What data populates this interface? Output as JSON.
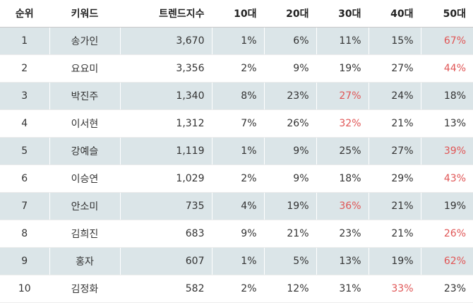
{
  "columns": [
    "순위",
    "키워드",
    "트렌드지수",
    "10대",
    "20대",
    "30대",
    "40대",
    "50대"
  ],
  "highlight_color": "#e05555",
  "rows": [
    {
      "rank": "1",
      "keyword": "송가인",
      "index": "3,670",
      "a10": "1%",
      "a20": "6%",
      "a30": "11%",
      "a40": "15%",
      "a50": "67%",
      "hl": "a50"
    },
    {
      "rank": "2",
      "keyword": "요요미",
      "index": "3,356",
      "a10": "2%",
      "a20": "9%",
      "a30": "19%",
      "a40": "27%",
      "a50": "44%",
      "hl": "a50"
    },
    {
      "rank": "3",
      "keyword": "박진주",
      "index": "1,340",
      "a10": "8%",
      "a20": "23%",
      "a30": "27%",
      "a40": "24%",
      "a50": "18%",
      "hl": "a30"
    },
    {
      "rank": "4",
      "keyword": "이서현",
      "index": "1,312",
      "a10": "7%",
      "a20": "26%",
      "a30": "32%",
      "a40": "21%",
      "a50": "13%",
      "hl": "a30"
    },
    {
      "rank": "5",
      "keyword": "강예슬",
      "index": "1,119",
      "a10": "1%",
      "a20": "9%",
      "a30": "25%",
      "a40": "27%",
      "a50": "39%",
      "hl": "a50"
    },
    {
      "rank": "6",
      "keyword": "이승연",
      "index": "1,029",
      "a10": "2%",
      "a20": "9%",
      "a30": "18%",
      "a40": "29%",
      "a50": "43%",
      "hl": "a50"
    },
    {
      "rank": "7",
      "keyword": "안소미",
      "index": "735",
      "a10": "4%",
      "a20": "19%",
      "a30": "36%",
      "a40": "21%",
      "a50": "19%",
      "hl": "a30"
    },
    {
      "rank": "8",
      "keyword": "김희진",
      "index": "683",
      "a10": "9%",
      "a20": "21%",
      "a30": "23%",
      "a40": "21%",
      "a50": "26%",
      "hl": "a50"
    },
    {
      "rank": "9",
      "keyword": "홍자",
      "index": "607",
      "a10": "1%",
      "a20": "5%",
      "a30": "13%",
      "a40": "19%",
      "a50": "62%",
      "hl": "a50"
    },
    {
      "rank": "10",
      "keyword": "김정화",
      "index": "582",
      "a10": "2%",
      "a20": "12%",
      "a30": "31%",
      "a40": "33%",
      "a50": "23%",
      "hl": "a40"
    }
  ]
}
